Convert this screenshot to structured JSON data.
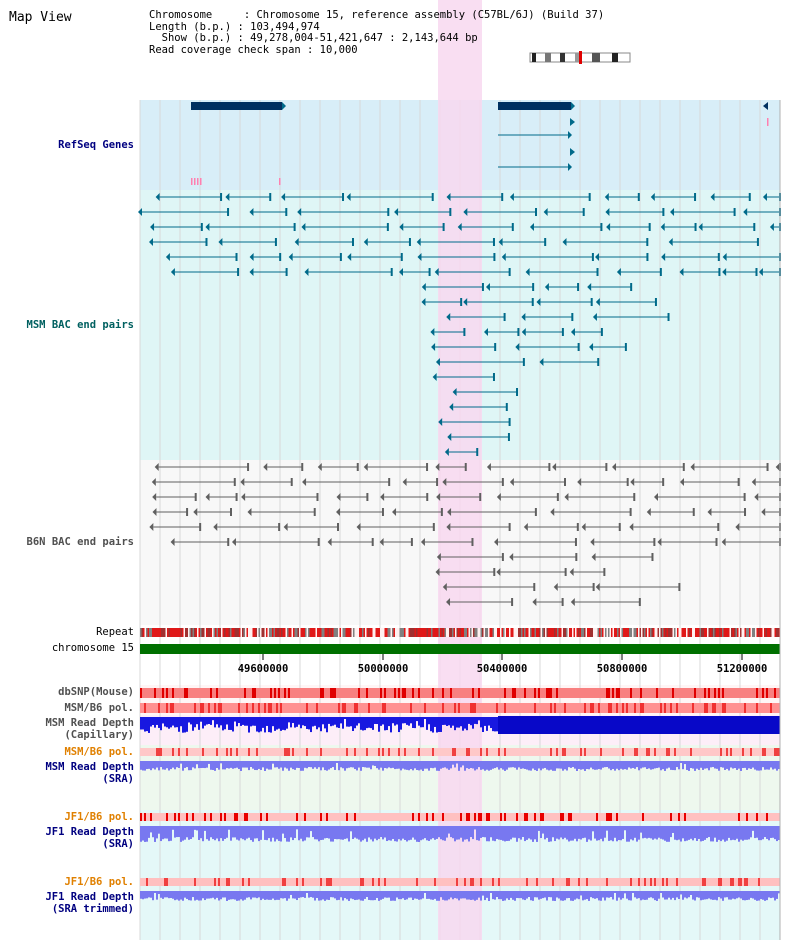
{
  "header": {
    "title": "Map View",
    "line1": "Chromosome     : Chromosome 15, reference assembly (C57BL/6J) (Build 37)",
    "line2": "Length (b.p.) : 103,494,974",
    "line3": "  Show (b.p.) : 49,278,004-51,421,647 : 2,143,644 bp",
    "line4": "Read coverage check span : 10,000"
  },
  "tracks": {
    "refseq": "RefSeq Genes",
    "msm_bac": "MSM BAC end pairs",
    "b6n_bac": "B6N BAC end pairs",
    "repeat": "Repeat",
    "chromosome": "chromosome 15",
    "dbsnp": "dbSNP(Mouse)",
    "msm_b6_pol": "MSM/B6 pol.",
    "msm_read_cap_1": "MSM Read Depth",
    "msm_read_cap_2": "(Capillary)",
    "msm_b6_pol2": "MSM/B6 pol.",
    "msm_read_sra_1": "MSM Read Depth",
    "msm_read_sra_2": "(SRA)",
    "jf1_b6_pol": "JF1/B6 pol.",
    "jf1_read_sra_1": "JF1 Read Depth",
    "jf1_read_sra_2": "(SRA)",
    "jf1_b6_pol2": "JF1/B6 pol.",
    "jf1_read_trim_1": "JF1 Read Depth",
    "jf1_read_trim_2": "(SRA trimmed)"
  },
  "axis": {
    "ticks": [
      "49600000",
      "50000000",
      "50400000",
      "50800000",
      "51200000"
    ]
  },
  "colors": {
    "refseq_bg": "#d8eef8",
    "msm_bg": "#dff6f6",
    "highlight": "#f8d8f0",
    "chromosome_bar": "#007000",
    "feature_navy": "#003060",
    "feature_teal": "#006a8a",
    "feature_gray": "#606060",
    "depth_blue": "#1818e0",
    "depth_lavender": "#7878f0"
  }
}
